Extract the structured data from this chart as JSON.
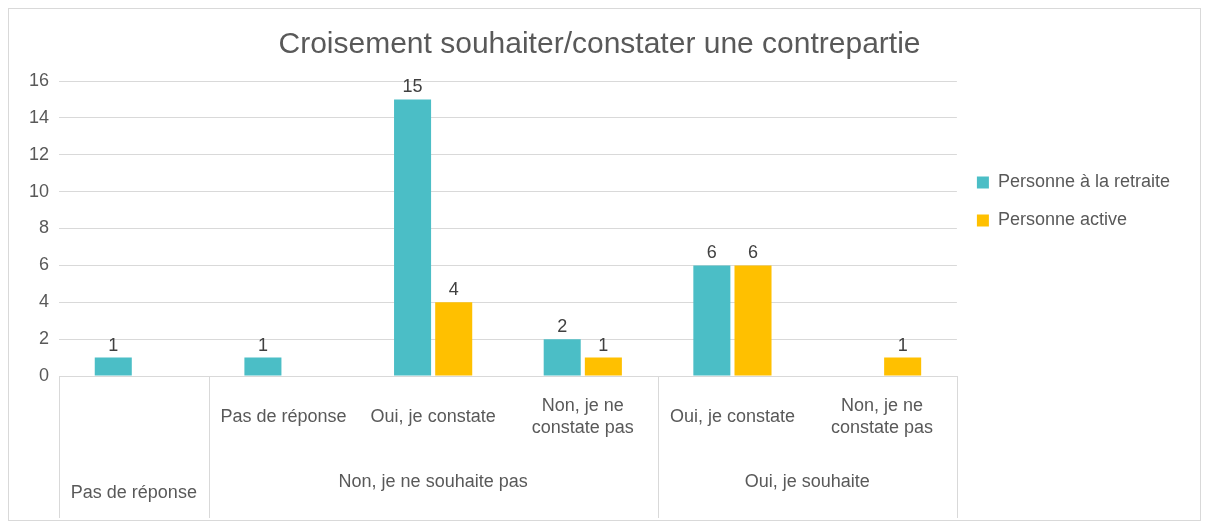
{
  "chart_data": {
    "type": "bar",
    "title": "Croisement souhaiter/constater une contrepartie",
    "categories": [
      null,
      "Pas de réponse",
      "Oui, je constate",
      "Non, je ne constate pas",
      "Oui, je constate",
      "Non, je ne constate pas"
    ],
    "series": [
      {
        "name": "Personne à la retraite",
        "color": "#4bbec6",
        "values": [
          1,
          1,
          15,
          2,
          6,
          null
        ]
      },
      {
        "name": "Personne active",
        "color": "#ffc000",
        "values": [
          null,
          null,
          4,
          1,
          6,
          1
        ]
      }
    ],
    "annotations": [
      "Pas de réponse",
      "Non, je ne souhaite pas",
      "Oui, je souhaite"
    ],
    "ylim": [
      0,
      16
    ],
    "yticks": [
      0,
      2,
      4,
      6,
      8,
      10,
      12,
      14,
      16
    ],
    "grid": "y",
    "legend": "right",
    "data_labels": true
  }
}
